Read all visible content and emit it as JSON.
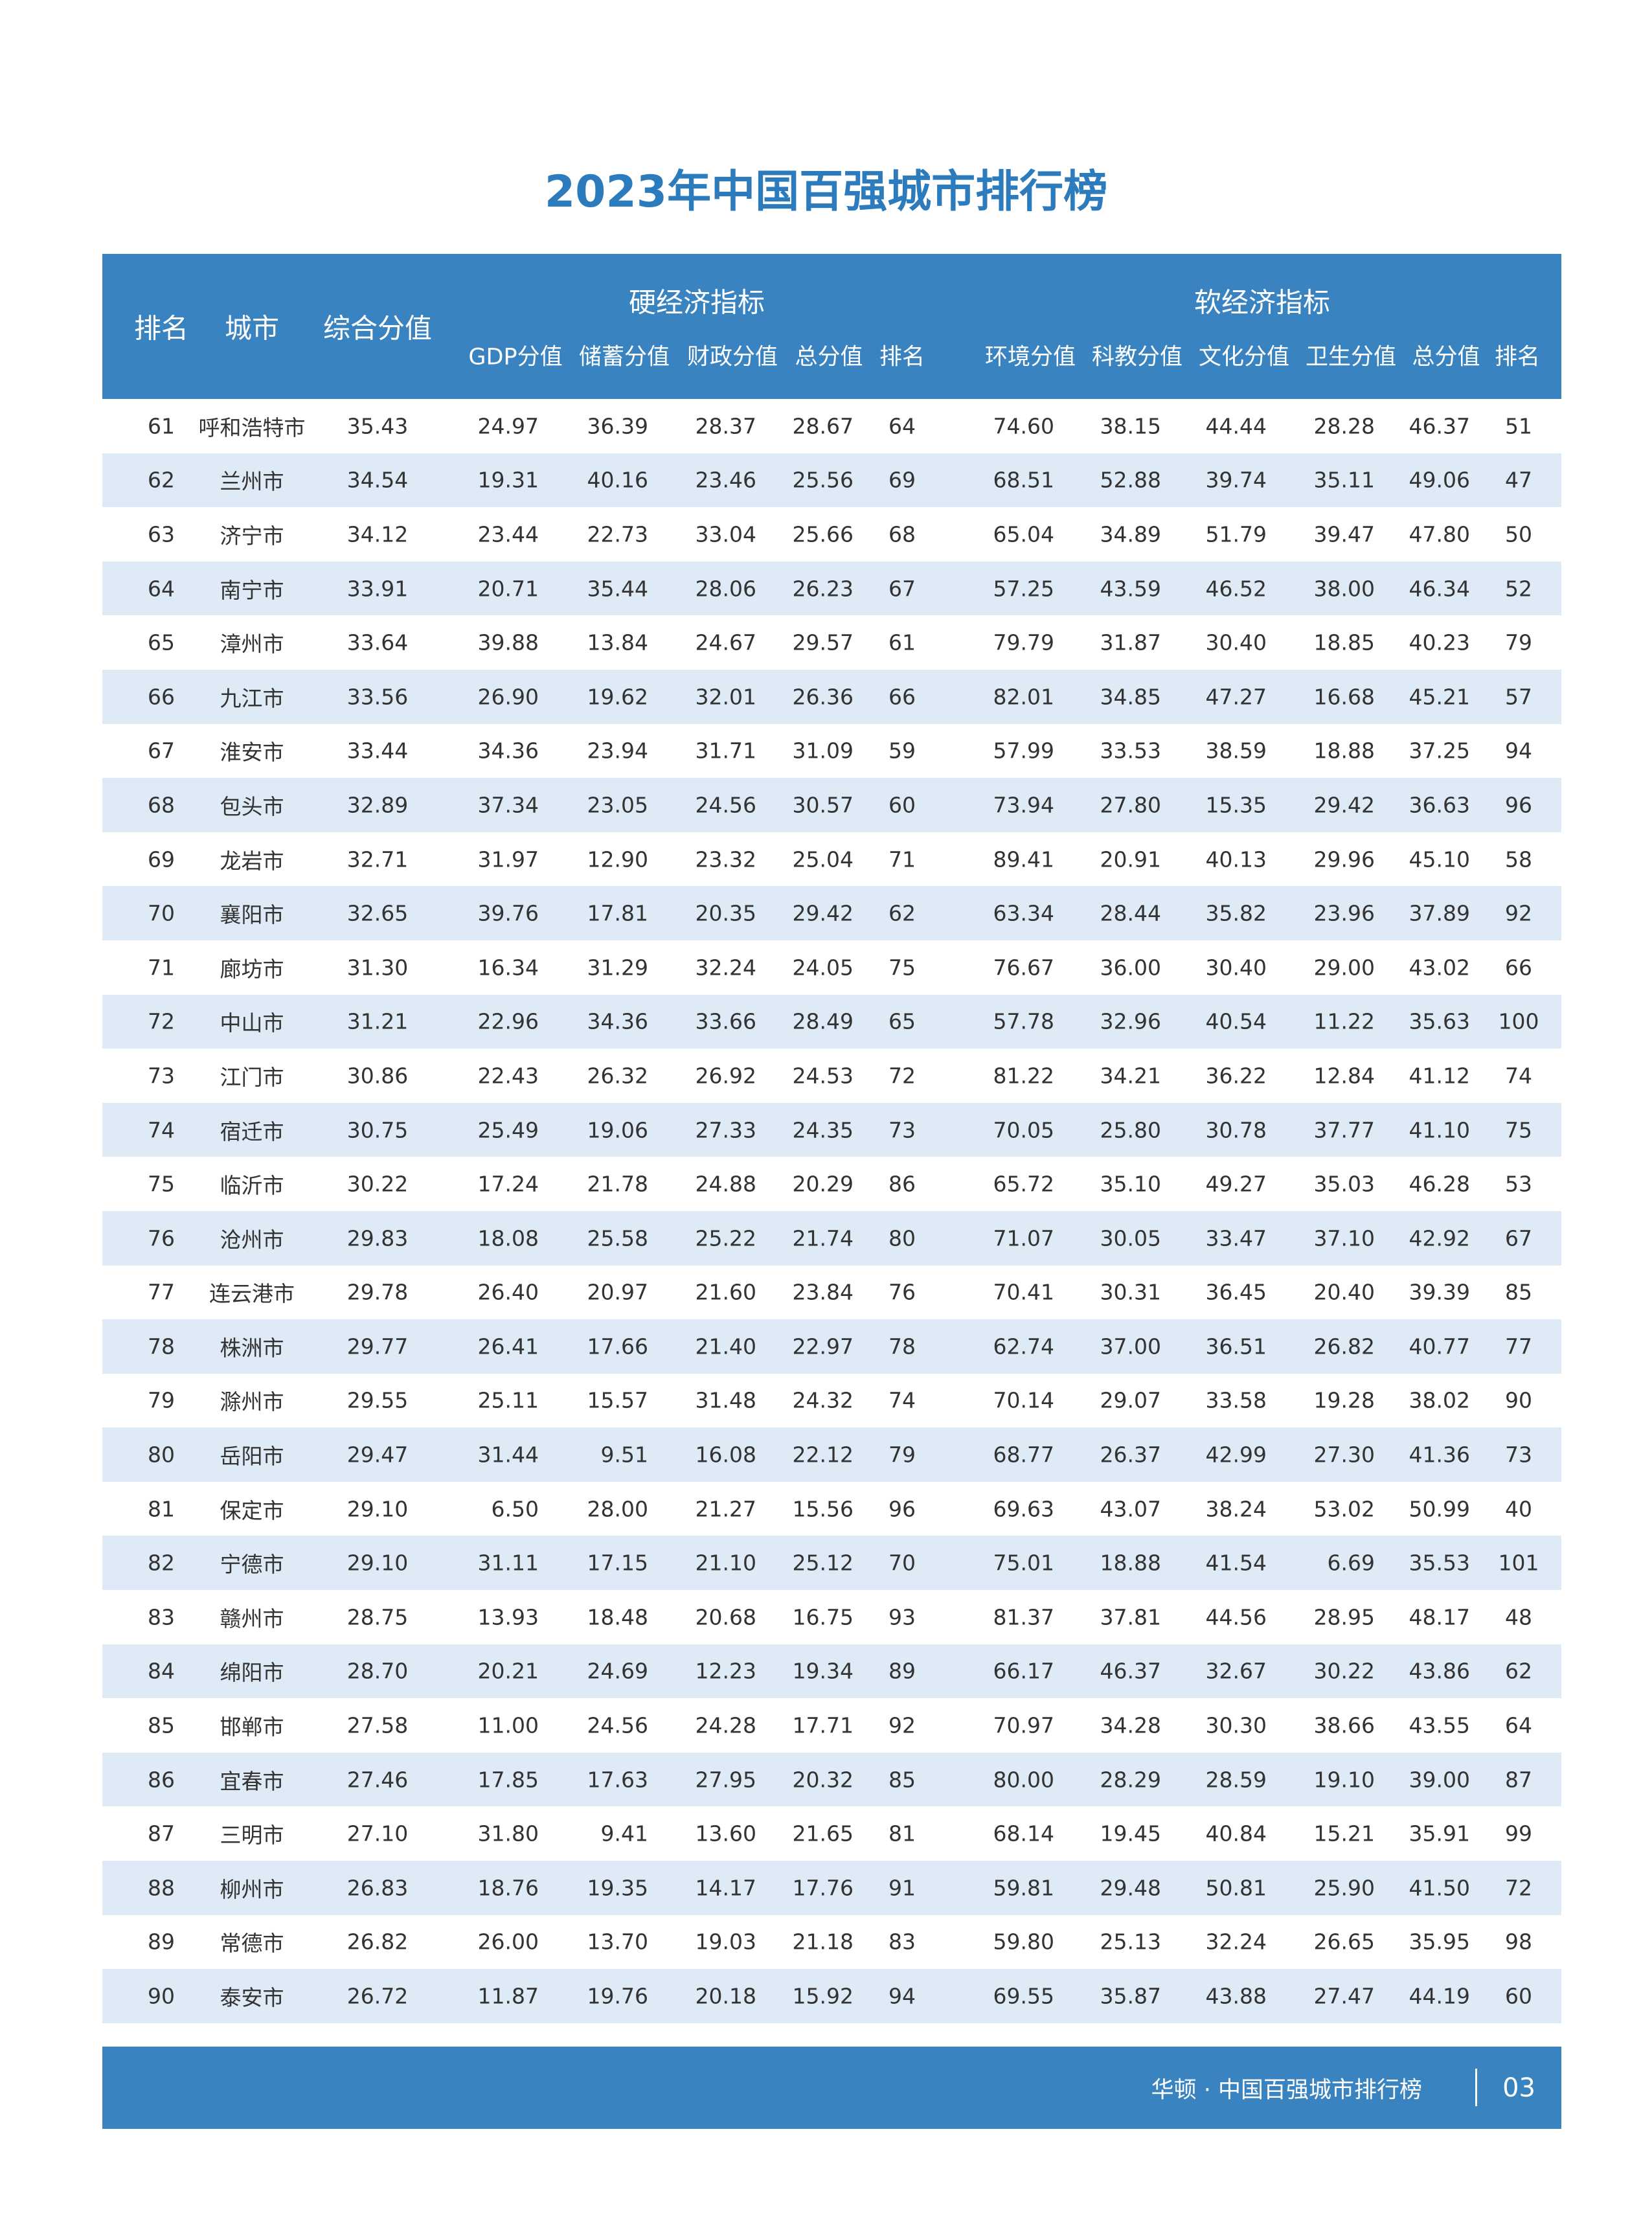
{
  "title": "2023年中国百强城市排行榜",
  "header": {
    "rank": "排名",
    "city": "城市",
    "composite": "综合分值",
    "hard_group": "硬经济指标",
    "soft_group": "软经济指标",
    "hard_cols": [
      "GDP分值",
      "储蓄分值",
      "财政分值",
      "总分值",
      "排名"
    ],
    "soft_cols": [
      "环境分值",
      "科教分值",
      "文化分值",
      "卫生分值",
      "总分值",
      "排名"
    ]
  },
  "colors": {
    "accent": "#3a83c1",
    "title": "#2b7bbd",
    "row_alt": "#deeaf5"
  },
  "rows": [
    [
      "61",
      "呼和浩特市",
      "35.43",
      "24.97",
      "36.39",
      "28.37",
      "28.67",
      "64",
      "74.60",
      "38.15",
      "44.44",
      "28.28",
      "46.37",
      "51"
    ],
    [
      "62",
      "兰州市",
      "34.54",
      "19.31",
      "40.16",
      "23.46",
      "25.56",
      "69",
      "68.51",
      "52.88",
      "39.74",
      "35.11",
      "49.06",
      "47"
    ],
    [
      "63",
      "济宁市",
      "34.12",
      "23.44",
      "22.73",
      "33.04",
      "25.66",
      "68",
      "65.04",
      "34.89",
      "51.79",
      "39.47",
      "47.80",
      "50"
    ],
    [
      "64",
      "南宁市",
      "33.91",
      "20.71",
      "35.44",
      "28.06",
      "26.23",
      "67",
      "57.25",
      "43.59",
      "46.52",
      "38.00",
      "46.34",
      "52"
    ],
    [
      "65",
      "漳州市",
      "33.64",
      "39.88",
      "13.84",
      "24.67",
      "29.57",
      "61",
      "79.79",
      "31.87",
      "30.40",
      "18.85",
      "40.23",
      "79"
    ],
    [
      "66",
      "九江市",
      "33.56",
      "26.90",
      "19.62",
      "32.01",
      "26.36",
      "66",
      "82.01",
      "34.85",
      "47.27",
      "16.68",
      "45.21",
      "57"
    ],
    [
      "67",
      "淮安市",
      "33.44",
      "34.36",
      "23.94",
      "31.71",
      "31.09",
      "59",
      "57.99",
      "33.53",
      "38.59",
      "18.88",
      "37.25",
      "94"
    ],
    [
      "68",
      "包头市",
      "32.89",
      "37.34",
      "23.05",
      "24.56",
      "30.57",
      "60",
      "73.94",
      "27.80",
      "15.35",
      "29.42",
      "36.63",
      "96"
    ],
    [
      "69",
      "龙岩市",
      "32.71",
      "31.97",
      "12.90",
      "23.32",
      "25.04",
      "71",
      "89.41",
      "20.91",
      "40.13",
      "29.96",
      "45.10",
      "58"
    ],
    [
      "70",
      "襄阳市",
      "32.65",
      "39.76",
      "17.81",
      "20.35",
      "29.42",
      "62",
      "63.34",
      "28.44",
      "35.82",
      "23.96",
      "37.89",
      "92"
    ],
    [
      "71",
      "廊坊市",
      "31.30",
      "16.34",
      "31.29",
      "32.24",
      "24.05",
      "75",
      "76.67",
      "36.00",
      "30.40",
      "29.00",
      "43.02",
      "66"
    ],
    [
      "72",
      "中山市",
      "31.21",
      "22.96",
      "34.36",
      "33.66",
      "28.49",
      "65",
      "57.78",
      "32.96",
      "40.54",
      "11.22",
      "35.63",
      "100"
    ],
    [
      "73",
      "江门市",
      "30.86",
      "22.43",
      "26.32",
      "26.92",
      "24.53",
      "72",
      "81.22",
      "34.21",
      "36.22",
      "12.84",
      "41.12",
      "74"
    ],
    [
      "74",
      "宿迁市",
      "30.75",
      "25.49",
      "19.06",
      "27.33",
      "24.35",
      "73",
      "70.05",
      "25.80",
      "30.78",
      "37.77",
      "41.10",
      "75"
    ],
    [
      "75",
      "临沂市",
      "30.22",
      "17.24",
      "21.78",
      "24.88",
      "20.29",
      "86",
      "65.72",
      "35.10",
      "49.27",
      "35.03",
      "46.28",
      "53"
    ],
    [
      "76",
      "沧州市",
      "29.83",
      "18.08",
      "25.58",
      "25.22",
      "21.74",
      "80",
      "71.07",
      "30.05",
      "33.47",
      "37.10",
      "42.92",
      "67"
    ],
    [
      "77",
      "连云港市",
      "29.78",
      "26.40",
      "20.97",
      "21.60",
      "23.84",
      "76",
      "70.41",
      "30.31",
      "36.45",
      "20.40",
      "39.39",
      "85"
    ],
    [
      "78",
      "株洲市",
      "29.77",
      "26.41",
      "17.66",
      "21.40",
      "22.97",
      "78",
      "62.74",
      "37.00",
      "36.51",
      "26.82",
      "40.77",
      "77"
    ],
    [
      "79",
      "滁州市",
      "29.55",
      "25.11",
      "15.57",
      "31.48",
      "24.32",
      "74",
      "70.14",
      "29.07",
      "33.58",
      "19.28",
      "38.02",
      "90"
    ],
    [
      "80",
      "岳阳市",
      "29.47",
      "31.44",
      "9.51",
      "16.08",
      "22.12",
      "79",
      "68.77",
      "26.37",
      "42.99",
      "27.30",
      "41.36",
      "73"
    ],
    [
      "81",
      "保定市",
      "29.10",
      "6.50",
      "28.00",
      "21.27",
      "15.56",
      "96",
      "69.63",
      "43.07",
      "38.24",
      "53.02",
      "50.99",
      "40"
    ],
    [
      "82",
      "宁德市",
      "29.10",
      "31.11",
      "17.15",
      "21.10",
      "25.12",
      "70",
      "75.01",
      "18.88",
      "41.54",
      "6.69",
      "35.53",
      "101"
    ],
    [
      "83",
      "赣州市",
      "28.75",
      "13.93",
      "18.48",
      "20.68",
      "16.75",
      "93",
      "81.37",
      "37.81",
      "44.56",
      "28.95",
      "48.17",
      "48"
    ],
    [
      "84",
      "绵阳市",
      "28.70",
      "20.21",
      "24.69",
      "12.23",
      "19.34",
      "89",
      "66.17",
      "46.37",
      "32.67",
      "30.22",
      "43.86",
      "62"
    ],
    [
      "85",
      "邯郸市",
      "27.58",
      "11.00",
      "24.56",
      "24.28",
      "17.71",
      "92",
      "70.97",
      "34.28",
      "30.30",
      "38.66",
      "43.55",
      "64"
    ],
    [
      "86",
      "宜春市",
      "27.46",
      "17.85",
      "17.63",
      "27.95",
      "20.32",
      "85",
      "80.00",
      "28.29",
      "28.59",
      "19.10",
      "39.00",
      "87"
    ],
    [
      "87",
      "三明市",
      "27.10",
      "31.80",
      "9.41",
      "13.60",
      "21.65",
      "81",
      "68.14",
      "19.45",
      "40.84",
      "15.21",
      "35.91",
      "99"
    ],
    [
      "88",
      "柳州市",
      "26.83",
      "18.76",
      "19.35",
      "14.17",
      "17.76",
      "91",
      "59.81",
      "29.48",
      "50.81",
      "25.90",
      "41.50",
      "72"
    ],
    [
      "89",
      "常德市",
      "26.82",
      "26.00",
      "13.70",
      "19.03",
      "21.18",
      "83",
      "59.80",
      "25.13",
      "32.24",
      "26.65",
      "35.95",
      "98"
    ],
    [
      "90",
      "泰安市",
      "26.72",
      "11.87",
      "19.76",
      "20.18",
      "15.92",
      "94",
      "69.55",
      "35.87",
      "43.88",
      "27.47",
      "44.19",
      "60"
    ]
  ],
  "footer": {
    "text": "华顿 · 中国百强城市排行榜",
    "page": "03"
  }
}
